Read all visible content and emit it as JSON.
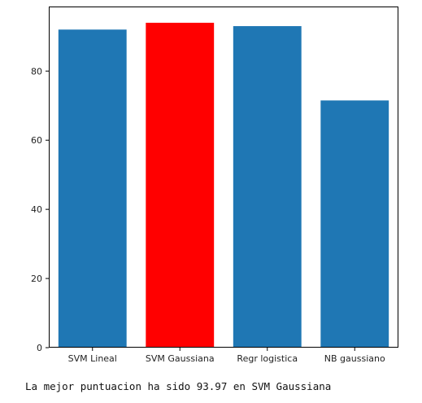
{
  "chart_data": {
    "type": "bar",
    "categories": [
      "SVM Lineal",
      "SVM Gaussiana",
      "Regr logistica",
      "NB gaussiano"
    ],
    "values": [
      92.0,
      93.97,
      93.0,
      71.5
    ],
    "colors": [
      "#1f77b4",
      "#ff0000",
      "#1f77b4",
      "#1f77b4"
    ],
    "title": "",
    "xlabel": "",
    "ylabel": "",
    "ylim": [
      0,
      98.67
    ],
    "yticks": [
      0,
      20,
      40,
      60,
      80
    ],
    "ytick_labels": [
      "0",
      "20",
      "40",
      "60",
      "80"
    ],
    "grid": false
  },
  "output": {
    "text": "La mejor puntuacion ha sido 93.97 en SVM Gaussiana"
  }
}
